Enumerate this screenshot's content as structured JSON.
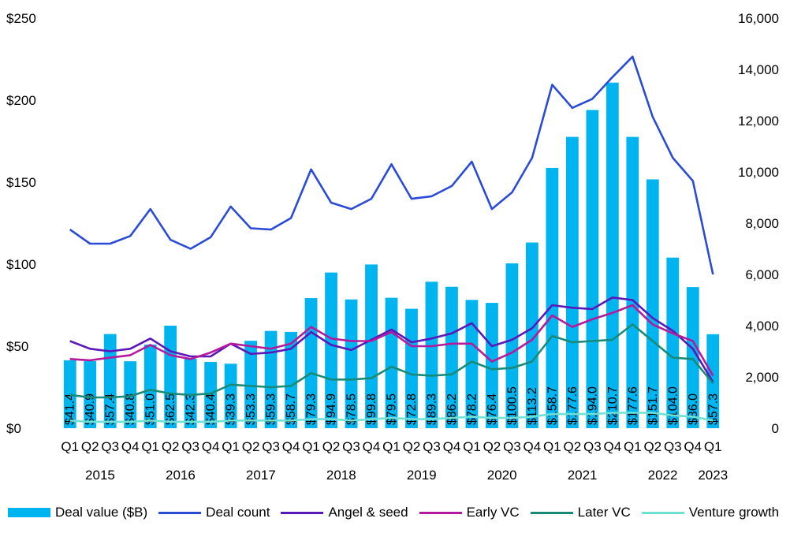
{
  "chart_data": {
    "type": "bar+line",
    "title": "",
    "categories": [
      "Q1",
      "Q2",
      "Q3",
      "Q4",
      "Q1",
      "Q2",
      "Q3",
      "Q4",
      "Q1",
      "Q2",
      "Q3",
      "Q4",
      "Q1",
      "Q2",
      "Q3",
      "Q4",
      "Q1",
      "Q2",
      "Q3",
      "Q4",
      "Q1",
      "Q2",
      "Q3",
      "Q4",
      "Q1",
      "Q2",
      "Q3",
      "Q4",
      "Q1",
      "Q2",
      "Q3",
      "Q4",
      "Q1"
    ],
    "years": [
      {
        "label": "2015",
        "start": 0,
        "end": 3
      },
      {
        "label": "2016",
        "start": 4,
        "end": 7
      },
      {
        "label": "2017",
        "start": 8,
        "end": 11
      },
      {
        "label": "2018",
        "start": 12,
        "end": 15
      },
      {
        "label": "2019",
        "start": 16,
        "end": 19
      },
      {
        "label": "2020",
        "start": 20,
        "end": 23
      },
      {
        "label": "2021",
        "start": 24,
        "end": 27
      },
      {
        "label": "2022",
        "start": 28,
        "end": 31
      },
      {
        "label": "2023",
        "start": 32,
        "end": 32
      }
    ],
    "left_axis": {
      "ylim": [
        0,
        250
      ],
      "ticks": [
        0,
        50,
        100,
        150,
        200,
        250
      ],
      "tick_labels": [
        "$0",
        "$50",
        "$100",
        "$150",
        "$200",
        "$250"
      ]
    },
    "right_axis": {
      "ylim": [
        0,
        16000
      ],
      "ticks": [
        0,
        2000,
        4000,
        6000,
        8000,
        10000,
        12000,
        14000,
        16000
      ],
      "tick_labels": [
        "0",
        "2,000",
        "4,000",
        "6,000",
        "8,000",
        "10,000",
        "12,000",
        "14,000",
        "16,000"
      ]
    },
    "bars": {
      "name": "Deal value ($B)",
      "color": "#00b4f0",
      "values": [
        41.4,
        40.9,
        57.4,
        40.8,
        51.0,
        62.5,
        42.3,
        40.4,
        39.3,
        53.3,
        59.3,
        58.7,
        79.3,
        94.9,
        78.5,
        99.8,
        79.5,
        72.8,
        89.3,
        86.2,
        78.2,
        76.4,
        100.5,
        113.2,
        158.7,
        177.6,
        194.0,
        210.7,
        177.6,
        151.7,
        104.0,
        86.0,
        57.3
      ],
      "labels": [
        "$41.4",
        "$40.9",
        "$57.4",
        "$40.8",
        "$51.0",
        "$62.5",
        "$42.3",
        "$40.4",
        "$39.3",
        "$53.3",
        "$59.3",
        "$58.7",
        "$79.3",
        "$94.9",
        "$78.5",
        "$99.8",
        "$79.5",
        "$72.8",
        "$89.3",
        "$86.2",
        "$78.2",
        "$76.4",
        "$100.5",
        "$113.2",
        "$158.7",
        "$177.6",
        "$194.0",
        "$210.7",
        "$177.6",
        "$151.7",
        "$104.0",
        "$86.0",
        "$57.3"
      ]
    },
    "series": [
      {
        "name": "Deal count",
        "color": "#2a4bd7",
        "axis": "right",
        "values": [
          7750,
          7200,
          7200,
          7500,
          8550,
          7350,
          7000,
          7450,
          8650,
          7800,
          7750,
          8200,
          10100,
          8800,
          8550,
          8950,
          10300,
          8950,
          9050,
          9450,
          10400,
          8550,
          9200,
          10550,
          13400,
          12500,
          12850,
          13700,
          14500,
          12150,
          10550,
          9650,
          6000
        ]
      },
      {
        "name": "Angel & seed",
        "color": "#5a17b9",
        "axis": "right",
        "values": [
          3400,
          3100,
          3000,
          3100,
          3500,
          3000,
          2800,
          2800,
          3300,
          2900,
          2950,
          3100,
          3750,
          3250,
          3050,
          3450,
          3850,
          3350,
          3500,
          3700,
          4100,
          3200,
          3450,
          3900,
          4800,
          4700,
          4650,
          5100,
          5000,
          4300,
          3800,
          3100,
          1800
        ]
      },
      {
        "name": "Early VC",
        "color": "#b51a9c",
        "axis": "right",
        "values": [
          2700,
          2650,
          2750,
          2850,
          3250,
          2850,
          2700,
          2950,
          3300,
          3200,
          3100,
          3300,
          3950,
          3500,
          3400,
          3400,
          3750,
          3200,
          3200,
          3300,
          3300,
          2600,
          2950,
          3450,
          4400,
          3950,
          4250,
          4500,
          4800,
          4050,
          3700,
          3400,
          2050
        ]
      },
      {
        "name": "Later VC",
        "color": "#1a8a78",
        "axis": "right",
        "values": [
          1300,
          1200,
          1200,
          1250,
          1500,
          1350,
          1300,
          1350,
          1700,
          1650,
          1600,
          1650,
          2150,
          1900,
          1900,
          1950,
          2400,
          2100,
          2050,
          2100,
          2600,
          2300,
          2350,
          2600,
          3600,
          3350,
          3400,
          3450,
          4050,
          3400,
          2750,
          2700,
          1750
        ]
      },
      {
        "name": "Venture growth",
        "color": "#6ee0d4",
        "axis": "right",
        "values": [
          300,
          250,
          250,
          250,
          300,
          250,
          250,
          250,
          300,
          300,
          300,
          300,
          350,
          350,
          300,
          350,
          400,
          350,
          350,
          400,
          450,
          400,
          400,
          450,
          550,
          550,
          550,
          600,
          600,
          600,
          500,
          450,
          300
        ]
      }
    ],
    "legend_position": "bottom"
  },
  "legend": [
    {
      "label": "Deal value ($B)",
      "kind": "bar",
      "color": "#00b4f0"
    },
    {
      "label": "Deal count",
      "kind": "line",
      "color": "#2a4bd7"
    },
    {
      "label": "Angel & seed",
      "kind": "line",
      "color": "#5a17b9"
    },
    {
      "label": "Early VC",
      "kind": "line",
      "color": "#b51a9c"
    },
    {
      "label": "Later VC",
      "kind": "line",
      "color": "#1a8a78"
    },
    {
      "label": "Venture growth",
      "kind": "line",
      "color": "#6ee0d4"
    }
  ]
}
